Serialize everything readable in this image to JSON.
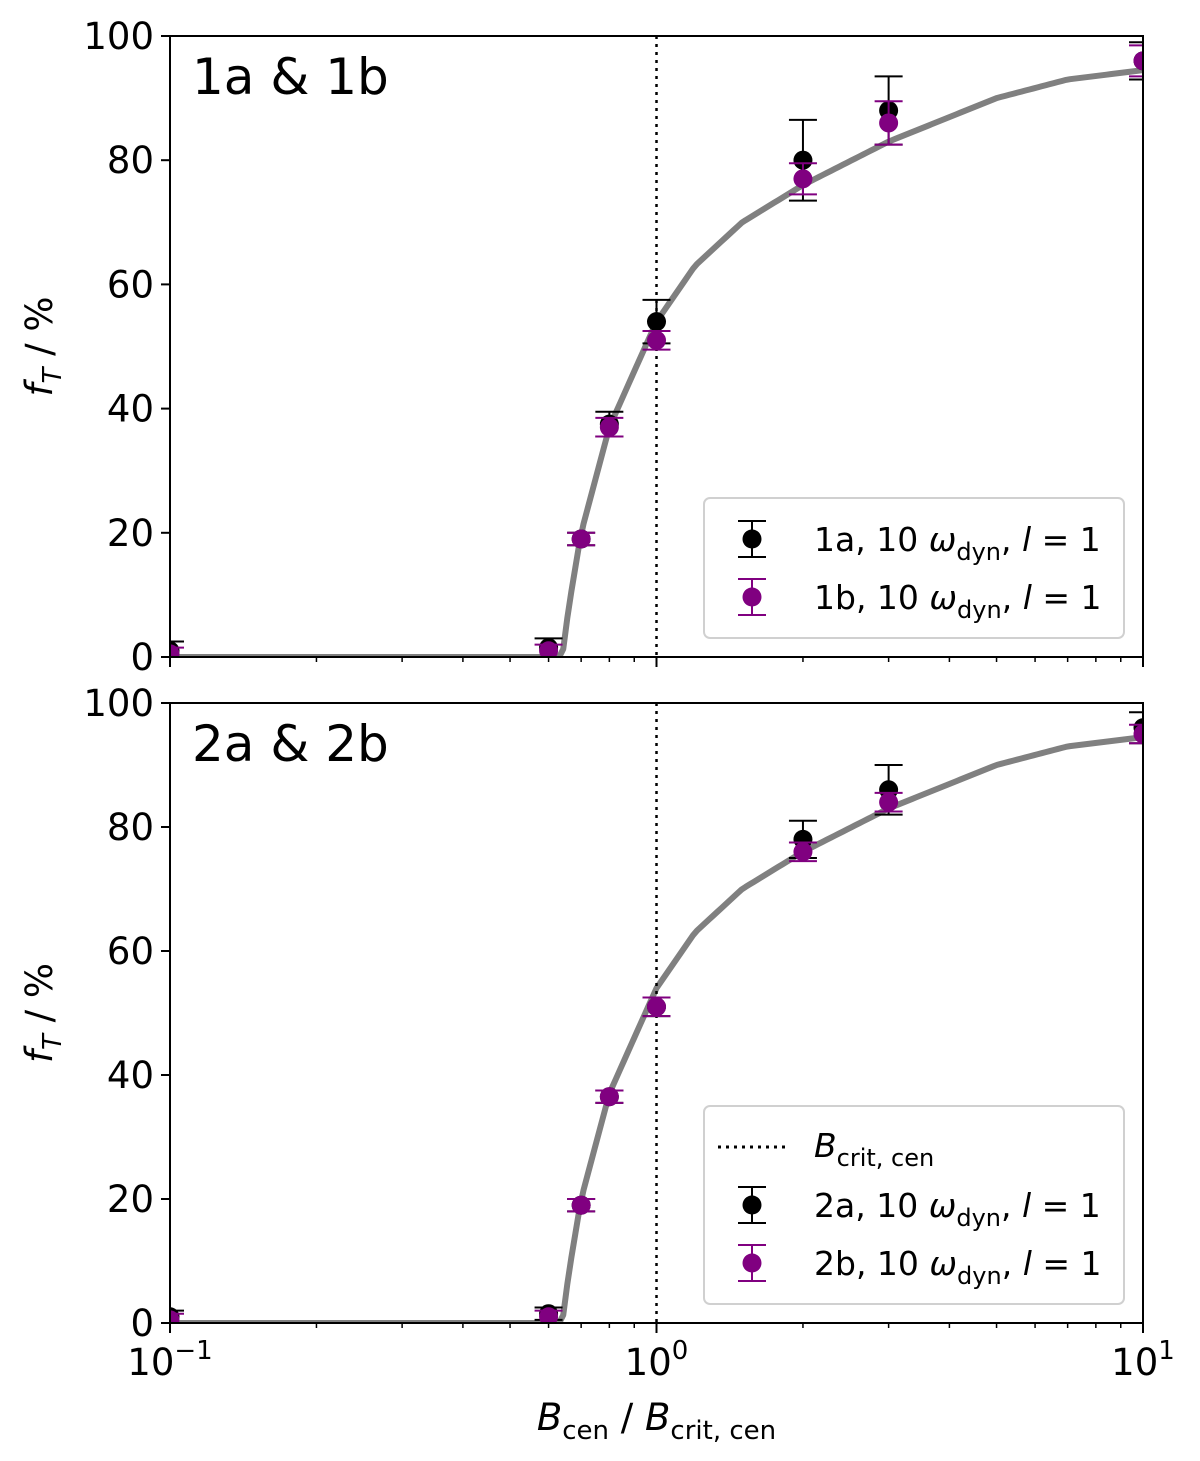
{
  "chart_data": [
    {
      "type": "scatter",
      "panel_label": "1a & 1b",
      "xscale": "log",
      "xlim": [
        0.1,
        10
      ],
      "ylim": [
        0,
        100
      ],
      "yticks": [
        0,
        20,
        40,
        60,
        80,
        100
      ],
      "ylabel": {
        "main": "f",
        "sub": "T",
        "rest": " / %"
      },
      "xlabel": "",
      "vline_x": 1,
      "fit_curve": {
        "color": "#808080",
        "threshold": 0.64,
        "x": [
          0.1,
          0.6,
          0.64,
          0.66,
          0.7,
          0.8,
          0.9,
          1.0,
          1.2,
          1.5,
          2.0,
          3.0,
          5.0,
          7.0,
          10.0
        ],
        "y": [
          0,
          0,
          0,
          8,
          20,
          37,
          46,
          54,
          63,
          70,
          76,
          83,
          90,
          93,
          94.5
        ]
      },
      "series": [
        {
          "name": "1a, 10 ω_dyn, l = 1",
          "color": "#000000",
          "points": [
            {
              "x": 0.1,
              "y": 1.0,
              "err": 1.5
            },
            {
              "x": 0.6,
              "y": 1.5,
              "err": 1.5
            },
            {
              "x": 0.7,
              "y": 19.0,
              "err": 1.0
            },
            {
              "x": 0.8,
              "y": 37.5,
              "err": 2.0
            },
            {
              "x": 1.0,
              "y": 54.0,
              "err": 3.5
            },
            {
              "x": 2.0,
              "y": 80.0,
              "err": 6.5
            },
            {
              "x": 3.0,
              "y": 88.0,
              "err": 5.5
            },
            {
              "x": 10.0,
              "y": 96.0,
              "err": 3.0
            }
          ]
        },
        {
          "name": "1b, 10 ω_dyn, l = 1",
          "color": "#800080",
          "points": [
            {
              "x": 0.1,
              "y": 0.5,
              "err": 1.0
            },
            {
              "x": 0.6,
              "y": 1.0,
              "err": 1.0
            },
            {
              "x": 0.7,
              "y": 19.0,
              "err": 1.0
            },
            {
              "x": 0.8,
              "y": 37.0,
              "err": 1.5
            },
            {
              "x": 1.0,
              "y": 51.0,
              "err": 1.5
            },
            {
              "x": 2.0,
              "y": 77.0,
              "err": 2.5
            },
            {
              "x": 3.0,
              "y": 86.0,
              "err": 3.5
            },
            {
              "x": 10.0,
              "y": 96.0,
              "err": 2.5
            }
          ]
        }
      ],
      "legend": {
        "placement": "lower right",
        "entries": [
          {
            "prefix": "1a, 10 ",
            "sym": "ω",
            "sub": "dyn",
            "tail": ", ",
            "var": "l",
            "eq": " = 1",
            "color": "#000000"
          },
          {
            "prefix": "1b, 10 ",
            "sym": "ω",
            "sub": "dyn",
            "tail": ", ",
            "var": "l",
            "eq": " = 1",
            "color": "#800080"
          }
        ]
      }
    },
    {
      "type": "scatter",
      "panel_label": "2a & 2b",
      "xscale": "log",
      "xlim": [
        0.1,
        10
      ],
      "ylim": [
        0,
        100
      ],
      "yticks": [
        0,
        20,
        40,
        60,
        80,
        100
      ],
      "ylabel": {
        "main": "f",
        "sub": "T",
        "rest": " / %"
      },
      "xlabel": {
        "a": "B",
        "a_sub": "cen",
        "sep": " / ",
        "b": "B",
        "b_sub": "crit, cen"
      },
      "xticks": [
        {
          "value": 0.1,
          "base": "10",
          "exp": "−1"
        },
        {
          "value": 1,
          "base": "10",
          "exp": "0"
        },
        {
          "value": 10,
          "base": "10",
          "exp": "1"
        }
      ],
      "vline_x": 1,
      "fit_curve": {
        "color": "#808080",
        "threshold": 0.64,
        "x": [
          0.1,
          0.6,
          0.64,
          0.66,
          0.7,
          0.8,
          0.9,
          1.0,
          1.2,
          1.5,
          2.0,
          3.0,
          5.0,
          7.0,
          10.0
        ],
        "y": [
          0,
          0,
          0,
          8,
          20,
          37,
          46,
          54,
          63,
          70,
          76,
          83,
          90,
          93,
          94.5
        ]
      },
      "series": [
        {
          "name": "2a, 10 ω_dyn, l = 1",
          "color": "#000000",
          "points": [
            {
              "x": 0.1,
              "y": 1.0,
              "err": 1.0
            },
            {
              "x": 0.6,
              "y": 1.5,
              "err": 1.0
            },
            {
              "x": 0.7,
              "y": 19.0,
              "err": 1.0
            },
            {
              "x": 0.8,
              "y": 36.5,
              "err": 1.0
            },
            {
              "x": 1.0,
              "y": 51.0,
              "err": 1.5
            },
            {
              "x": 2.0,
              "y": 78.0,
              "err": 3.0
            },
            {
              "x": 3.0,
              "y": 86.0,
              "err": 4.0
            },
            {
              "x": 10.0,
              "y": 96.0,
              "err": 2.5
            }
          ]
        },
        {
          "name": "2b, 10 ω_dyn, l = 1",
          "color": "#800080",
          "points": [
            {
              "x": 0.1,
              "y": 0.5,
              "err": 1.0
            },
            {
              "x": 0.6,
              "y": 1.0,
              "err": 1.0
            },
            {
              "x": 0.7,
              "y": 19.0,
              "err": 1.0
            },
            {
              "x": 0.8,
              "y": 36.5,
              "err": 1.0
            },
            {
              "x": 1.0,
              "y": 51.0,
              "err": 1.5
            },
            {
              "x": 2.0,
              "y": 76.0,
              "err": 1.5
            },
            {
              "x": 3.0,
              "y": 84.0,
              "err": 1.5
            },
            {
              "x": 10.0,
              "y": 95.0,
              "err": 1.5
            }
          ]
        }
      ],
      "legend": {
        "placement": "lower right",
        "vline_entry": {
          "main": "B",
          "sub": "crit, cen"
        },
        "entries": [
          {
            "prefix": "2a, 10 ",
            "sym": "ω",
            "sub": "dyn",
            "tail": ", ",
            "var": "l",
            "eq": " = 1",
            "color": "#000000"
          },
          {
            "prefix": "2b, 10 ",
            "sym": "ω",
            "sub": "dyn",
            "tail": ", ",
            "var": "l",
            "eq": " = 1",
            "color": "#800080"
          }
        ]
      }
    }
  ]
}
